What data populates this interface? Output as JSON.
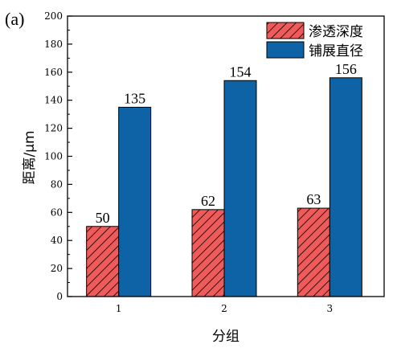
{
  "panel_label": "(a)",
  "chart_data": {
    "type": "bar",
    "categories": [
      "1",
      "2",
      "3"
    ],
    "series": [
      {
        "name": "渗透深度",
        "values": [
          50,
          62,
          63
        ],
        "color": "#ef5b5b",
        "pattern": "hatched"
      },
      {
        "name": "铺展直径",
        "values": [
          135,
          154,
          156
        ],
        "color": "#0d63a5",
        "pattern": "solid"
      }
    ],
    "data_labels": [
      [
        "50",
        "62",
        "63"
      ],
      [
        "135",
        "154",
        "156"
      ]
    ],
    "xlabel": "分组",
    "ylabel": "距离/μm",
    "ylim": [
      0,
      200
    ],
    "yticks": [
      "0",
      "20",
      "40",
      "60",
      "80",
      "100",
      "120",
      "140",
      "160",
      "180",
      "200"
    ],
    "grid": false,
    "legend_position": "top-right"
  }
}
